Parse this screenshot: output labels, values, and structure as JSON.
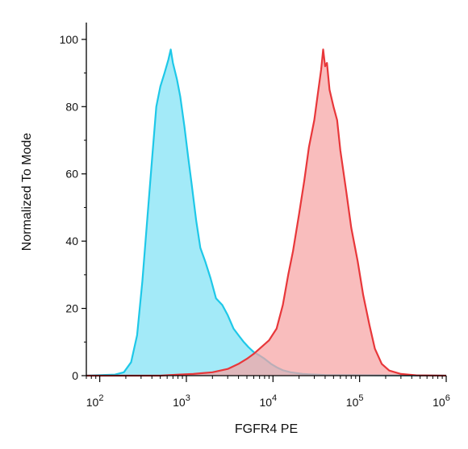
{
  "chart_data": {
    "type": "area",
    "title": "",
    "xlabel": "FGFR4 PE",
    "ylabel": "Normalized To Mode",
    "x_scale": "log",
    "xlim": [
      70,
      1000000
    ],
    "ylim": [
      0,
      105
    ],
    "x_ticks": [
      {
        "value": 100,
        "base": "10",
        "exp": "2"
      },
      {
        "value": 1000,
        "base": "10",
        "exp": "3"
      },
      {
        "value": 10000,
        "base": "10",
        "exp": "4"
      },
      {
        "value": 100000,
        "base": "10",
        "exp": "5"
      },
      {
        "value": 1000000,
        "base": "10",
        "exp": "6"
      }
    ],
    "y_ticks": [
      "0",
      "20",
      "40",
      "60",
      "80",
      "100"
    ],
    "grid": false,
    "series": [
      {
        "color": "#1ec8e8",
        "fill": "#7fe2f5",
        "points": [
          [
            70,
            0
          ],
          [
            150,
            0.3
          ],
          [
            190,
            1
          ],
          [
            230,
            4
          ],
          [
            270,
            12
          ],
          [
            310,
            28
          ],
          [
            350,
            45
          ],
          [
            400,
            64
          ],
          [
            450,
            80
          ],
          [
            500,
            86
          ],
          [
            560,
            90
          ],
          [
            620,
            94
          ],
          [
            660,
            97
          ],
          [
            700,
            93
          ],
          [
            780,
            88
          ],
          [
            850,
            83
          ],
          [
            950,
            74
          ],
          [
            1050,
            65
          ],
          [
            1150,
            57
          ],
          [
            1300,
            46
          ],
          [
            1450,
            38
          ],
          [
            1650,
            34
          ],
          [
            1900,
            29
          ],
          [
            2200,
            23
          ],
          [
            2600,
            21
          ],
          [
            3000,
            18
          ],
          [
            3500,
            14
          ],
          [
            4000,
            12
          ],
          [
            4600,
            10
          ],
          [
            5200,
            8.5
          ],
          [
            6000,
            7
          ],
          [
            7000,
            6
          ],
          [
            8000,
            5
          ],
          [
            9500,
            3.5
          ],
          [
            11000,
            2.5
          ],
          [
            13000,
            1.6
          ],
          [
            16000,
            1
          ],
          [
            22000,
            0.5
          ],
          [
            40000,
            0.2
          ],
          [
            1000000,
            0
          ]
        ]
      },
      {
        "color": "#e8373a",
        "fill": "#f7a3a3",
        "points": [
          [
            70,
            0
          ],
          [
            500,
            0
          ],
          [
            800,
            0.3
          ],
          [
            1200,
            0.5
          ],
          [
            2000,
            1
          ],
          [
            3000,
            2
          ],
          [
            4000,
            3.5
          ],
          [
            5000,
            5
          ],
          [
            6000,
            6.5
          ],
          [
            7000,
            8
          ],
          [
            9000,
            10.5
          ],
          [
            11000,
            14
          ],
          [
            13000,
            21
          ],
          [
            15000,
            30
          ],
          [
            17000,
            37
          ],
          [
            20000,
            48
          ],
          [
            23000,
            58
          ],
          [
            26000,
            68
          ],
          [
            30000,
            76
          ],
          [
            33000,
            84
          ],
          [
            36000,
            91
          ],
          [
            38000,
            97
          ],
          [
            40000,
            92
          ],
          [
            42000,
            93
          ],
          [
            45000,
            85
          ],
          [
            50000,
            80
          ],
          [
            55000,
            76
          ],
          [
            60000,
            67
          ],
          [
            70000,
            55
          ],
          [
            80000,
            44
          ],
          [
            95000,
            34
          ],
          [
            110000,
            24
          ],
          [
            130000,
            15
          ],
          [
            150000,
            8
          ],
          [
            180000,
            3.5
          ],
          [
            220000,
            1.5
          ],
          [
            300000,
            0.5
          ],
          [
            450000,
            0.1
          ],
          [
            1000000,
            0
          ]
        ]
      }
    ]
  }
}
